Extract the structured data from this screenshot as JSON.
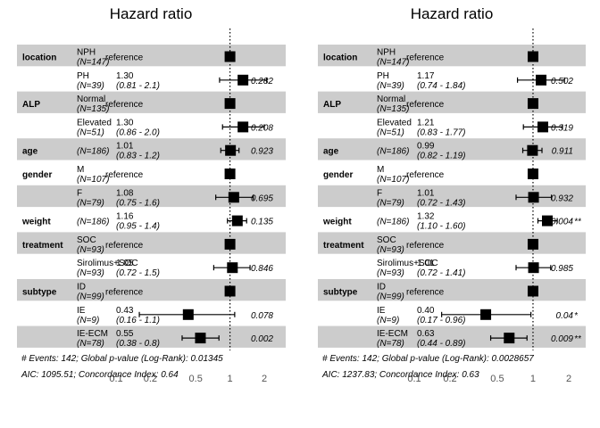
{
  "chart_data": [
    {
      "type": "forest",
      "title": "Hazard ratio",
      "x_scale": "log",
      "reference_line": 1,
      "x_ticks": [
        0.1,
        0.2,
        0.5,
        1,
        2
      ],
      "x_tick_labels": [
        "0.1",
        "0.2",
        "0.5",
        "1",
        "2"
      ],
      "rows": [
        {
          "var": "location",
          "level": "NPH",
          "n": "(N=147)",
          "est": "reference",
          "hr": 1,
          "is_ref": true,
          "shaded": true
        },
        {
          "var": "",
          "level": "PH",
          "n": "(N=39)",
          "est": "1.30",
          "ci_text": "(0.81 - 2.1)",
          "hr": 1.3,
          "lo": 0.81,
          "hi": 2.1,
          "p": "0.282",
          "shaded": false
        },
        {
          "var": "ALP",
          "level": "Normal",
          "n": "(N=135)",
          "est": "reference",
          "hr": 1,
          "is_ref": true,
          "shaded": true
        },
        {
          "var": "",
          "level": "Elevated",
          "n": "(N=51)",
          "est": "1.30",
          "ci_text": "(0.86 - 2.0)",
          "hr": 1.3,
          "lo": 0.86,
          "hi": 2.0,
          "p": "0.208",
          "shaded": false
        },
        {
          "var": "age",
          "level": "",
          "n": "(N=186)",
          "est": "1.01",
          "ci_text": "(0.83 - 1.2)",
          "hr": 1.01,
          "lo": 0.83,
          "hi": 1.2,
          "p": "0.923",
          "shaded": true
        },
        {
          "var": "gender",
          "level": "M",
          "n": "(N=107)",
          "est": "reference",
          "hr": 1,
          "is_ref": true,
          "shaded": false
        },
        {
          "var": "",
          "level": "F",
          "n": "(N=79)",
          "est": "1.08",
          "ci_text": "(0.75 - 1.6)",
          "hr": 1.08,
          "lo": 0.75,
          "hi": 1.6,
          "p": "0.695",
          "shaded": true
        },
        {
          "var": "weight",
          "level": "",
          "n": "(N=186)",
          "est": "1.16",
          "ci_text": "(0.95 - 1.4)",
          "hr": 1.16,
          "lo": 0.95,
          "hi": 1.4,
          "p": "0.135",
          "shaded": false
        },
        {
          "var": "treatment",
          "level": "SOC",
          "n": "(N=93)",
          "est": "reference",
          "hr": 1,
          "is_ref": true,
          "shaded": true
        },
        {
          "var": "",
          "level": "Sirolimus+SOC",
          "n": "(N=93)",
          "est": "1.05",
          "ci_text": "(0.72 - 1.5)",
          "hr": 1.05,
          "lo": 0.72,
          "hi": 1.5,
          "p": "0.846",
          "shaded": false
        },
        {
          "var": "subtype",
          "level": "ID",
          "n": "(N=99)",
          "est": "reference",
          "hr": 1,
          "is_ref": true,
          "shaded": true
        },
        {
          "var": "",
          "level": "IE",
          "n": "(N=9)",
          "est": "0.43",
          "ci_text": "(0.16 - 1.1)",
          "hr": 0.43,
          "lo": 0.16,
          "hi": 1.1,
          "p": "0.078",
          "shaded": false
        },
        {
          "var": "",
          "level": "IE-ECM",
          "n": "(N=78)",
          "est": "0.55",
          "ci_text": "(0.38 - 0.8)",
          "hr": 0.55,
          "lo": 0.38,
          "hi": 0.8,
          "p": "0.002",
          "shaded": true
        }
      ],
      "footer": [
        "# Events: 142; Global p-value (Log-Rank): 0.01345",
        "AIC: 1095.51; Concordance Index: 0.64"
      ]
    },
    {
      "type": "forest",
      "title": "Hazard ratio",
      "x_scale": "log",
      "reference_line": 1,
      "x_ticks": [
        0.1,
        0.2,
        0.5,
        1,
        2
      ],
      "x_tick_labels": [
        "0.1",
        "0.2",
        "0.5",
        "1",
        "2"
      ],
      "rows": [
        {
          "var": "location",
          "level": "NPH",
          "n": "(N=147)",
          "est": "reference",
          "hr": 1,
          "is_ref": true,
          "shaded": true
        },
        {
          "var": "",
          "level": "PH",
          "n": "(N=39)",
          "est": "1.17",
          "ci_text": "(0.74 - 1.84)",
          "hr": 1.17,
          "lo": 0.74,
          "hi": 1.84,
          "p": "0.502",
          "shaded": false
        },
        {
          "var": "ALP",
          "level": "Normal",
          "n": "(N=135)",
          "est": "reference",
          "hr": 1,
          "is_ref": true,
          "shaded": true
        },
        {
          "var": "",
          "level": "Elevated",
          "n": "(N=51)",
          "est": "1.21",
          "ci_text": "(0.83 - 1.77)",
          "hr": 1.21,
          "lo": 0.83,
          "hi": 1.77,
          "p": "0.319",
          "shaded": false
        },
        {
          "var": "age",
          "level": "",
          "n": "(N=186)",
          "est": "0.99",
          "ci_text": "(0.82 - 1.19)",
          "hr": 0.99,
          "lo": 0.82,
          "hi": 1.19,
          "p": "0.911",
          "shaded": true
        },
        {
          "var": "gender",
          "level": "M",
          "n": "(N=107)",
          "est": "reference",
          "hr": 1,
          "is_ref": true,
          "shaded": false
        },
        {
          "var": "",
          "level": "F",
          "n": "(N=79)",
          "est": "1.01",
          "ci_text": "(0.72 - 1.43)",
          "hr": 1.01,
          "lo": 0.72,
          "hi": 1.43,
          "p": "0.932",
          "shaded": true
        },
        {
          "var": "weight",
          "level": "",
          "n": "(N=186)",
          "est": "1.32",
          "ci_text": "(1.10 - 1.60)",
          "hr": 1.32,
          "lo": 1.1,
          "hi": 1.6,
          "p": "0.004",
          "p_star": "**",
          "shaded": false
        },
        {
          "var": "treatment",
          "level": "SOC",
          "n": "(N=93)",
          "est": "reference",
          "hr": 1,
          "is_ref": true,
          "shaded": true
        },
        {
          "var": "",
          "level": "Sirolimus+SOC",
          "n": "(N=93)",
          "est": "1.01",
          "ci_text": "(0.72 - 1.41)",
          "hr": 1.01,
          "lo": 0.72,
          "hi": 1.41,
          "p": "0.985",
          "shaded": false
        },
        {
          "var": "subtype",
          "level": "ID",
          "n": "(N=99)",
          "est": "reference",
          "hr": 1,
          "is_ref": true,
          "shaded": true
        },
        {
          "var": "",
          "level": "IE",
          "n": "(N=9)",
          "est": "0.40",
          "ci_text": "(0.17 - 0.96)",
          "hr": 0.4,
          "lo": 0.17,
          "hi": 0.96,
          "p": "0.04",
          "p_star": "*",
          "shaded": false
        },
        {
          "var": "",
          "level": "IE-ECM",
          "n": "(N=78)",
          "est": "0.63",
          "ci_text": "(0.44 - 0.89)",
          "hr": 0.63,
          "lo": 0.44,
          "hi": 0.89,
          "p": "0.009",
          "p_star": "**",
          "shaded": true
        }
      ],
      "footer": [
        "# Events: 142; Global p-value (Log-Rank): 0.0028657",
        "AIC: 1237.83; Concordance Index: 0.63"
      ]
    }
  ]
}
